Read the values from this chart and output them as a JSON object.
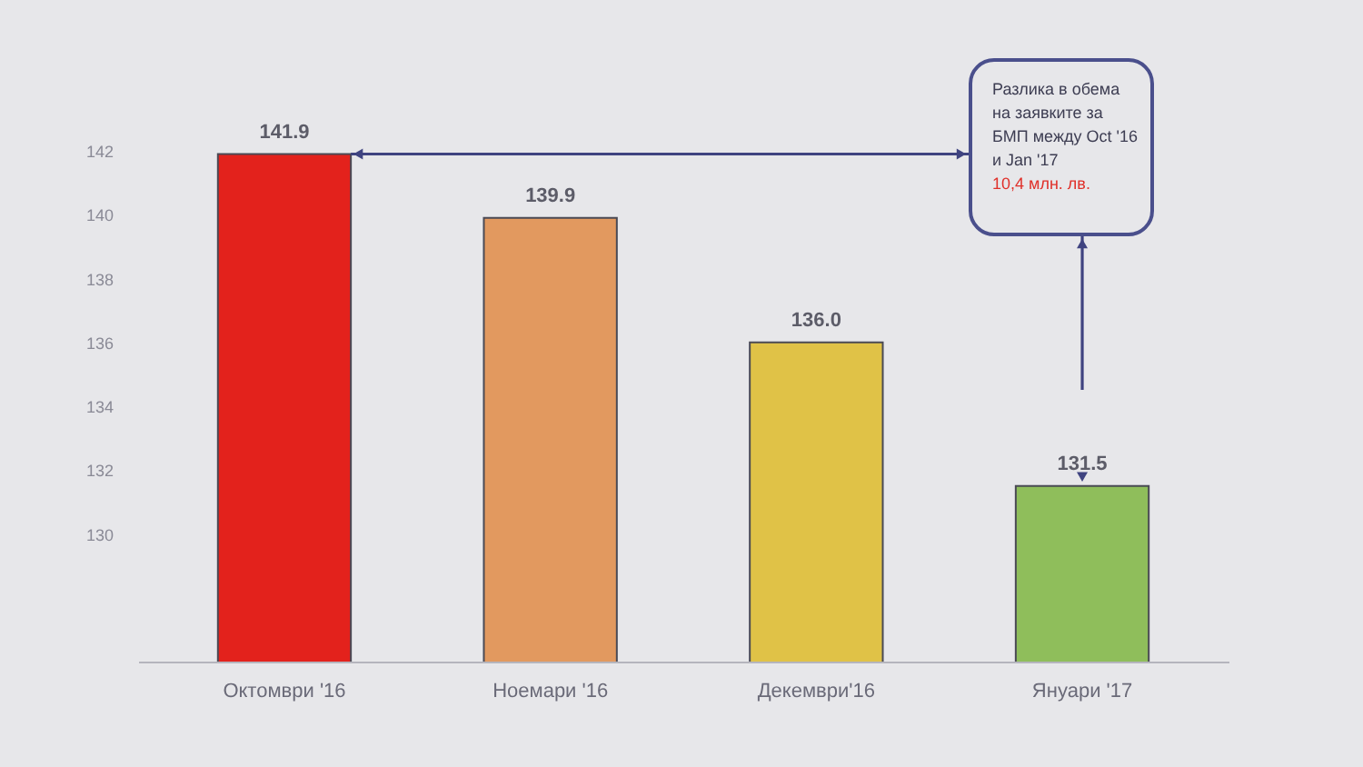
{
  "chart_data": {
    "type": "bar",
    "categories": [
      "Октомври '16",
      "Ноемари '16",
      "Декември'16",
      "Януари '17"
    ],
    "values": [
      141.9,
      139.9,
      136.0,
      131.5
    ],
    "colors": [
      "#e3221c",
      "#e2995f",
      "#e0c247",
      "#8fbe5b"
    ],
    "value_labels": [
      "141.9",
      "139.9",
      "136.0",
      "131.5"
    ],
    "ylim": [
      126,
      142
    ],
    "yticks": [
      130,
      132,
      134,
      136,
      138,
      140,
      142
    ],
    "grid": false,
    "legend": false,
    "annotations": [
      "Разлика в обема на заявките за БМП между Oct '16 и Jan '17",
      "10,4 млн. лв."
    ]
  }
}
